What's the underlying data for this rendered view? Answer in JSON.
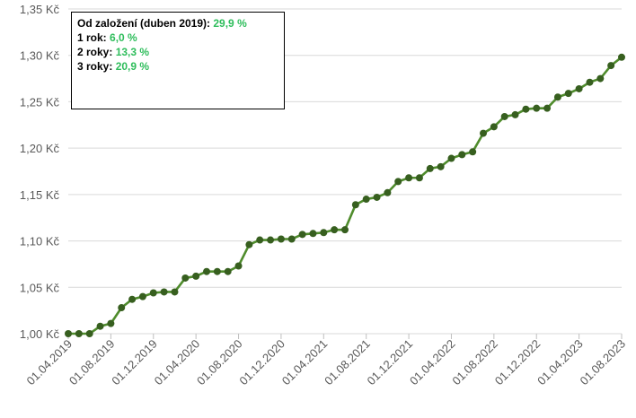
{
  "stats_box": {
    "rows": [
      {
        "label": "Od založení (duben 2019):",
        "value": "29,9 %"
      },
      {
        "label": "1 rok:",
        "value": "6,0 %"
      },
      {
        "label": "2 roky:",
        "value": "13,3 %"
      },
      {
        "label": "3 roky:",
        "value": "20,9 %"
      }
    ]
  },
  "colors": {
    "line": "#4f8c2c",
    "marker": "#375f1f",
    "value_text": "#2ebd5b",
    "grid": "#d9d9d9"
  },
  "chart_data": {
    "type": "line",
    "title": "",
    "xlabel": "",
    "ylabel": "",
    "ylim": [
      1.0,
      1.35
    ],
    "y_ticks": [
      1.0,
      1.05,
      1.1,
      1.15,
      1.2,
      1.25,
      1.3,
      1.35
    ],
    "y_tick_labels": [
      "1,00 Kč",
      "1,05 Kč",
      "1,10 Kč",
      "1,15 Kč",
      "1,20 Kč",
      "1,25 Kč",
      "1,30 Kč",
      "1,35 Kč"
    ],
    "x_tick_labels": [
      "01.04.2019",
      "01.08.2019",
      "01.12.2019",
      "01.04.2020",
      "01.08.2020",
      "01.12.2020",
      "01.04.2021",
      "01.08.2021",
      "01.12.2021",
      "01.04.2022",
      "01.08.2022",
      "01.12.2022",
      "01.04.2023",
      "01.08.2023"
    ],
    "grid": true,
    "legend": "none",
    "series": [
      {
        "values": [
          1.0,
          1.0,
          1.0,
          1.008,
          1.011,
          1.028,
          1.037,
          1.04,
          1.044,
          1.045,
          1.045,
          1.06,
          1.062,
          1.067,
          1.067,
          1.067,
          1.073,
          1.096,
          1.101,
          1.101,
          1.102,
          1.102,
          1.107,
          1.108,
          1.109,
          1.112,
          1.112,
          1.139,
          1.145,
          1.147,
          1.152,
          1.164,
          1.168,
          1.168,
          1.178,
          1.18,
          1.189,
          1.193,
          1.196,
          1.216,
          1.223,
          1.234,
          1.236,
          1.242,
          1.243,
          1.243,
          1.255,
          1.259,
          1.264,
          1.271,
          1.275,
          1.289,
          1.298
        ]
      }
    ]
  }
}
